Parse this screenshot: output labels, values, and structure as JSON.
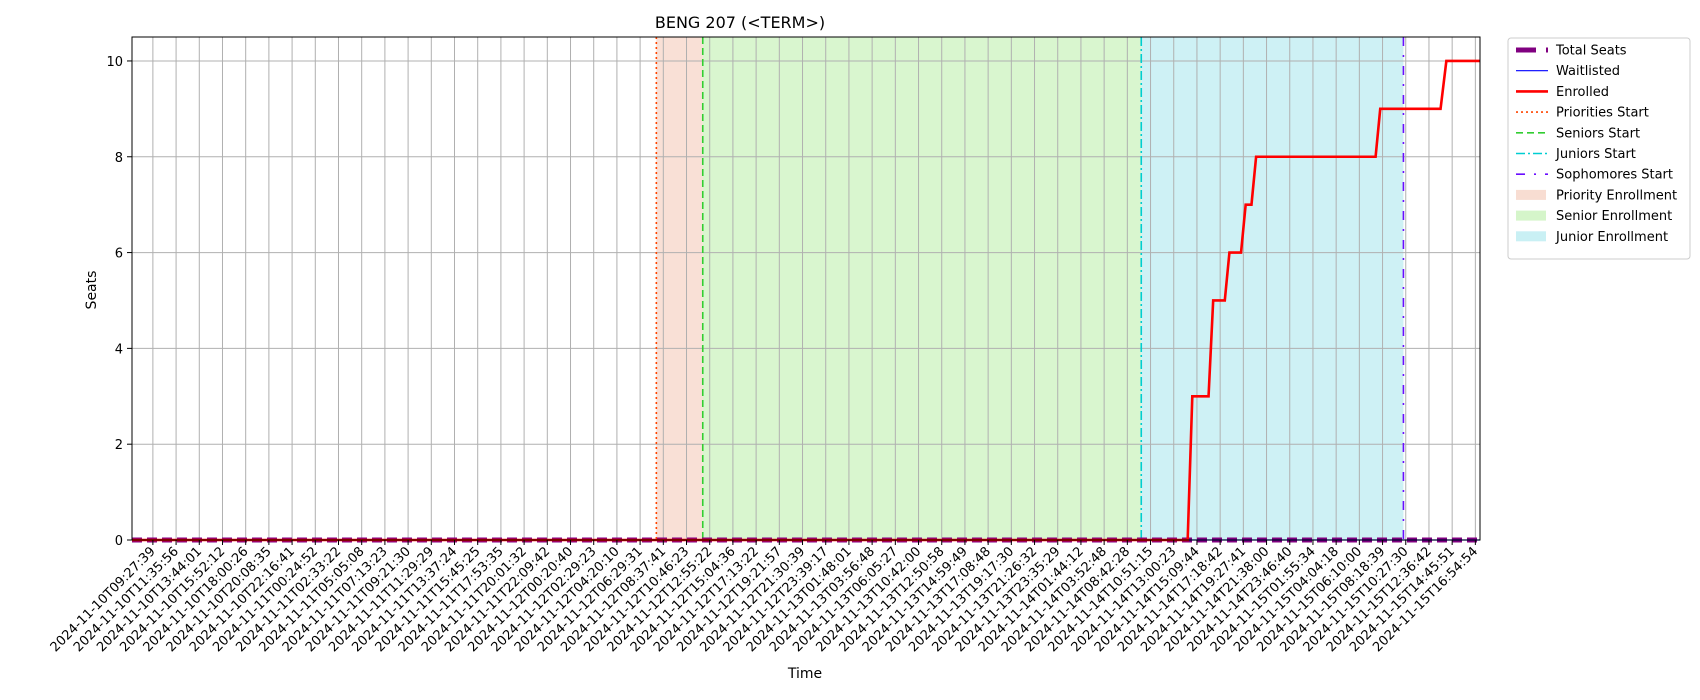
{
  "chart_data": {
    "type": "line",
    "title": "BENG 207 (<TERM>)",
    "xlabel": "Time",
    "ylabel": "Seats",
    "ylim": [
      0,
      10.5
    ],
    "yticks": [
      0,
      2,
      4,
      6,
      8,
      10
    ],
    "grid": true,
    "legend_placement": "outside-top-right",
    "x_tick_labels": [
      "2024-11-10T09:27:39",
      "2024-11-10T11:35:56",
      "2024-11-10T13:44:01",
      "2024-11-10T15:52:12",
      "2024-11-10T18:00:26",
      "2024-11-10T20:08:35",
      "2024-11-10T22:16:41",
      "2024-11-11T00:24:52",
      "2024-11-11T02:33:22",
      "2024-11-11T05:05:08",
      "2024-11-11T07:13:23",
      "2024-11-11T09:21:30",
      "2024-11-11T11:29:29",
      "2024-11-11T13:37:24",
      "2024-11-11T15:45:25",
      "2024-11-11T17:53:35",
      "2024-11-11T20:01:32",
      "2024-11-11T22:09:42",
      "2024-11-12T00:20:40",
      "2024-11-12T02:29:23",
      "2024-11-12T04:20:10",
      "2024-11-12T06:29:31",
      "2024-11-12T08:37:41",
      "2024-11-12T10:46:23",
      "2024-11-12T12:55:22",
      "2024-11-12T15:04:36",
      "2024-11-12T17:13:22",
      "2024-11-12T19:21:57",
      "2024-11-12T21:30:39",
      "2024-11-12T23:39:17",
      "2024-11-13T01:48:01",
      "2024-11-13T03:56:48",
      "2024-11-13T06:05:27",
      "2024-11-13T10:42:00",
      "2024-11-13T12:50:58",
      "2024-11-13T14:59:49",
      "2024-11-13T17:08:48",
      "2024-11-13T19:17:30",
      "2024-11-13T21:26:32",
      "2024-11-13T23:35:29",
      "2024-11-14T01:44:12",
      "2024-11-14T03:52:48",
      "2024-11-14T08:42:28",
      "2024-11-14T10:51:15",
      "2024-11-14T13:00:23",
      "2024-11-14T15:09:44",
      "2024-11-14T17:18:42",
      "2024-11-14T19:27:41",
      "2024-11-14T21:38:00",
      "2024-11-14T23:46:40",
      "2024-11-15T01:55:34",
      "2024-11-15T04:04:18",
      "2024-11-15T06:10:00",
      "2024-11-15T08:18:39",
      "2024-11-15T10:27:30",
      "2024-11-15T12:36:42",
      "2024-11-15T14:45:51",
      "2024-11-15T16:54:54"
    ],
    "x_range": [
      -0.9,
      57.2
    ],
    "series": [
      {
        "name": "Total Seats",
        "color": "#800080",
        "style": "dashed-thick",
        "points": [
          [
            -0.9,
            0
          ],
          [
            57.2,
            0
          ]
        ]
      },
      {
        "name": "Waitlisted",
        "color": "#0000ff",
        "style": "solid-thin",
        "points": [
          [
            -0.9,
            0
          ],
          [
            57.2,
            0
          ]
        ]
      },
      {
        "name": "Enrolled",
        "color": "#ff0000",
        "style": "solid-thick",
        "points": [
          [
            -0.9,
            0
          ],
          [
            44.6,
            0
          ],
          [
            44.8,
            3
          ],
          [
            45.5,
            3
          ],
          [
            45.7,
            5
          ],
          [
            46.2,
            5
          ],
          [
            46.4,
            6
          ],
          [
            46.9,
            6
          ],
          [
            47.1,
            7
          ],
          [
            47.35,
            7
          ],
          [
            47.55,
            8
          ],
          [
            52.7,
            8
          ],
          [
            52.9,
            9
          ],
          [
            55.5,
            9
          ],
          [
            55.75,
            10
          ],
          [
            57.2,
            10
          ]
        ]
      }
    ],
    "markers": [
      {
        "name": "Priorities Start",
        "color": "#ff4500",
        "style": "dotted",
        "x": 21.7
      },
      {
        "name": "Seniors Start",
        "color": "#32cd32",
        "style": "dashed",
        "x": 23.7
      },
      {
        "name": "Juniors Start",
        "color": "#00ced1",
        "style": "dashdot",
        "x": 42.6
      },
      {
        "name": "Sophomores Start",
        "color": "#6a0dff",
        "style": "loosely-dashdot",
        "x": 53.9
      }
    ],
    "regions": [
      {
        "name": "Priority Enrollment",
        "color": "#f4c7b4",
        "from": 21.7,
        "to": 23.7
      },
      {
        "name": "Senior Enrollment",
        "color": "#b9efa7",
        "from": 23.7,
        "to": 42.6
      },
      {
        "name": "Junior Enrollment",
        "color": "#a5e6ec",
        "from": 42.6,
        "to": 53.9
      }
    ],
    "legend": [
      "Total Seats",
      "Waitlisted",
      "Enrolled",
      "Priorities Start",
      "Seniors Start",
      "Juniors Start",
      "Sophomores Start",
      "Priority Enrollment",
      "Senior Enrollment",
      "Junior Enrollment"
    ]
  }
}
